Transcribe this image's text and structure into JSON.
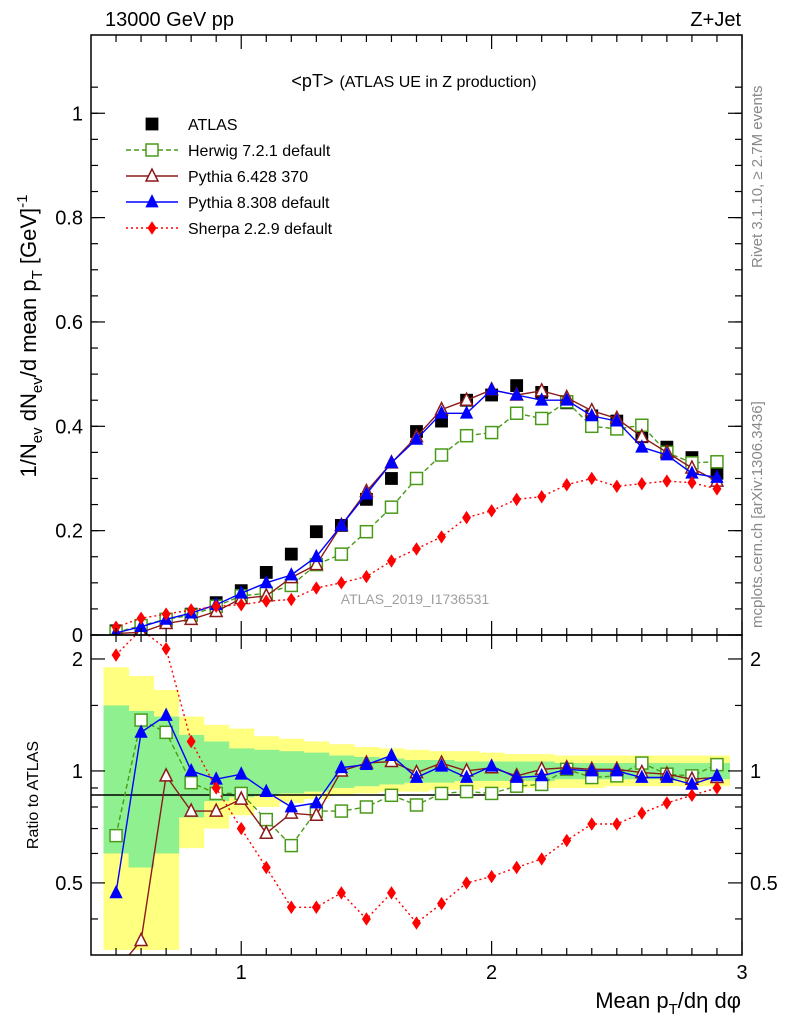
{
  "header": {
    "left": "13000 GeV pp",
    "right": "Z+Jet"
  },
  "plot_title": {
    "main": "<pT>",
    "sub": "(ATLAS UE in Z production)"
  },
  "side_labels": {
    "rivet": "Rivet 3.1.10, ≥ 2.7M events",
    "mcplots": "mcplots.cern.ch [arXiv:1306.3436]"
  },
  "watermark": "ATLAS_2019_I1736531",
  "chart_data": [
    {
      "type": "scatter",
      "panel": "main",
      "ylabel": "1/N_ev dN_ev/d mean p_T [GeV]^-1",
      "xlim": [
        0.4,
        3.0
      ],
      "ylim": [
        0,
        1.15
      ],
      "yticks": [
        0,
        0.2,
        0.4,
        0.6,
        0.8,
        1
      ],
      "ytick_labels": [
        "0",
        "0.2",
        "0.4",
        "0.6",
        "0.8",
        "1"
      ],
      "x": [
        0.5,
        0.6,
        0.7,
        0.8,
        0.9,
        1.0,
        1.1,
        1.2,
        1.3,
        1.4,
        1.5,
        1.6,
        1.7,
        1.8,
        1.9,
        2.0,
        2.1,
        2.2,
        2.3,
        2.4,
        2.5,
        2.6,
        2.7,
        2.8,
        2.9
      ],
      "legend_placement": "top-left",
      "series": [
        {
          "name": "ATLAS",
          "color": "#000000",
          "marker": "square-filled",
          "line": "none",
          "values": [
            0.008,
            0.013,
            0.024,
            0.04,
            0.062,
            0.085,
            0.12,
            0.155,
            0.198,
            0.21,
            0.26,
            0.3,
            0.39,
            0.41,
            0.45,
            0.46,
            0.478,
            0.465,
            0.445,
            0.42,
            0.41,
            0.38,
            0.36,
            0.34,
            0.31
          ]
        },
        {
          "name": "Herwig 7.2.1 default",
          "color": "#4a9a1a",
          "marker": "square-open",
          "line": "dashed",
          "values": [
            0.005,
            0.018,
            0.03,
            0.038,
            0.055,
            0.075,
            0.08,
            0.095,
            0.135,
            0.155,
            0.198,
            0.245,
            0.3,
            0.345,
            0.382,
            0.388,
            0.425,
            0.415,
            0.447,
            0.4,
            0.395,
            0.402,
            0.35,
            0.33,
            0.332
          ]
        },
        {
          "name": "Pythia 6.428 370",
          "color": "#8b1a1a",
          "marker": "triangle-open",
          "line": "solid",
          "values": [
            0.003,
            0.005,
            0.022,
            0.03,
            0.045,
            0.07,
            0.075,
            0.11,
            0.135,
            0.21,
            0.275,
            0.33,
            0.38,
            0.432,
            0.45,
            0.47,
            0.46,
            0.468,
            0.455,
            0.43,
            0.415,
            0.38,
            0.35,
            0.32,
            0.295
          ]
        },
        {
          "name": "Pythia 8.308 default",
          "color": "#0000ff",
          "marker": "triangle-filled",
          "line": "solid",
          "values": [
            0.004,
            0.016,
            0.03,
            0.042,
            0.058,
            0.08,
            0.1,
            0.115,
            0.15,
            0.21,
            0.27,
            0.33,
            0.375,
            0.425,
            0.425,
            0.47,
            0.46,
            0.45,
            0.45,
            0.42,
            0.41,
            0.36,
            0.345,
            0.31,
            0.302
          ]
        },
        {
          "name": "Sherpa 2.2.9 default",
          "color": "#ff0000",
          "marker": "diamond-filled",
          "line": "dotted",
          "values": [
            0.015,
            0.032,
            0.04,
            0.048,
            0.055,
            0.058,
            0.065,
            0.068,
            0.09,
            0.1,
            0.112,
            0.142,
            0.165,
            0.188,
            0.225,
            0.238,
            0.26,
            0.265,
            0.288,
            0.3,
            0.285,
            0.29,
            0.295,
            0.292,
            0.28
          ]
        }
      ]
    },
    {
      "type": "scatter",
      "panel": "ratio",
      "ylabel": "Ratio to ATLAS",
      "xlabel": "Mean p_T/dη dφ",
      "xlim": [
        0.4,
        3.0
      ],
      "ylim": [
        0.32,
        2.32
      ],
      "xticks": [
        1,
        2,
        3
      ],
      "xtick_labels": [
        "1",
        "2",
        "3"
      ],
      "yticks": [
        0.5,
        1,
        2
      ],
      "ytick_labels": [
        "0.5",
        "1",
        "2"
      ],
      "reference_line": 1,
      "x": [
        0.5,
        0.6,
        0.7,
        0.8,
        0.9,
        1.0,
        1.1,
        1.2,
        1.3,
        1.4,
        1.5,
        1.6,
        1.7,
        1.8,
        1.9,
        2.0,
        2.1,
        2.2,
        2.3,
        2.4,
        2.5,
        2.6,
        2.7,
        2.8,
        2.9
      ],
      "uncertainty_bands": {
        "inner_color": "#8ef08e",
        "outer_color": "#ffff80",
        "inner_low": [
          0.6,
          0.55,
          0.6,
          0.75,
          0.83,
          0.85,
          0.86,
          0.87,
          0.88,
          0.9,
          0.91,
          0.92,
          0.93,
          0.93,
          0.94,
          0.94,
          0.94,
          0.94,
          0.95,
          0.95,
          0.95,
          0.95,
          0.95,
          0.95,
          0.95
        ],
        "inner_high": [
          1.5,
          1.45,
          1.4,
          1.25,
          1.2,
          1.15,
          1.14,
          1.13,
          1.12,
          1.1,
          1.09,
          1.08,
          1.07,
          1.07,
          1.06,
          1.06,
          1.06,
          1.06,
          1.05,
          1.05,
          1.05,
          1.05,
          1.05,
          1.05,
          1.05
        ],
        "outer_low": [
          0.33,
          0.33,
          0.33,
          0.62,
          0.7,
          0.76,
          0.8,
          0.82,
          0.84,
          0.86,
          0.87,
          0.88,
          0.88,
          0.89,
          0.89,
          0.9,
          0.9,
          0.9,
          0.9,
          0.9,
          0.91,
          0.91,
          0.91,
          0.91,
          0.91
        ],
        "outer_high": [
          1.9,
          1.8,
          1.65,
          1.4,
          1.33,
          1.3,
          1.24,
          1.22,
          1.2,
          1.18,
          1.16,
          1.15,
          1.14,
          1.13,
          1.13,
          1.12,
          1.11,
          1.11,
          1.1,
          1.1,
          1.1,
          1.1,
          1.1,
          1.1,
          1.1
        ]
      },
      "series": [
        {
          "name": "Herwig 7.2.1 default",
          "color": "#4a9a1a",
          "marker": "square-open",
          "line": "dashed",
          "values": [
            0.67,
            1.37,
            1.27,
            0.93,
            0.87,
            0.87,
            0.74,
            0.63,
            0.78,
            0.78,
            0.8,
            0.86,
            0.81,
            0.87,
            0.88,
            0.87,
            0.91,
            0.92,
            1.01,
            0.96,
            0.97,
            1.05,
            0.98,
            0.97,
            1.04
          ]
        },
        {
          "name": "Pythia 6.428 370",
          "color": "#8b1a1a",
          "marker": "triangle-open",
          "line": "solid",
          "values": [
            0.29,
            0.35,
            0.97,
            0.78,
            0.78,
            0.84,
            0.68,
            0.77,
            0.76,
            1.0,
            1.05,
            1.06,
            0.99,
            1.05,
            1.0,
            1.02,
            0.97,
            1.01,
            1.02,
            1.01,
            1.01,
            0.99,
            0.98,
            0.95,
            0.96
          ]
        },
        {
          "name": "Pythia 8.308 default",
          "color": "#0000ff",
          "marker": "triangle-filled",
          "line": "solid",
          "values": [
            0.47,
            1.27,
            1.41,
            1.0,
            0.95,
            0.98,
            0.88,
            0.8,
            0.82,
            1.02,
            1.04,
            1.1,
            0.96,
            1.03,
            0.96,
            1.03,
            0.96,
            0.97,
            1.01,
            1.0,
            1.0,
            0.96,
            0.96,
            0.92,
            0.97
          ]
        },
        {
          "name": "Sherpa 2.2.9 default",
          "color": "#ff0000",
          "marker": "diamond-filled",
          "line": "dotted",
          "values": [
            2.05,
            2.4,
            2.13,
            1.2,
            0.9,
            0.7,
            0.55,
            0.43,
            0.43,
            0.47,
            0.4,
            0.47,
            0.39,
            0.44,
            0.5,
            0.52,
            0.55,
            0.58,
            0.65,
            0.72,
            0.72,
            0.77,
            0.82,
            0.86,
            0.9
          ]
        }
      ]
    }
  ]
}
